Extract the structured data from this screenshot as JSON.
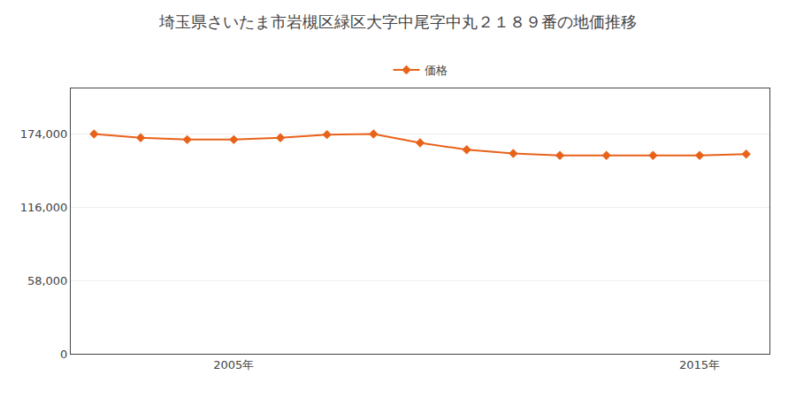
{
  "chart_data": {
    "type": "line",
    "title": "埼玉県さいたま市岩槻区緑区大字中尾字中丸２１８９番の地価推移",
    "x": [
      2002,
      2003,
      2004,
      2005,
      2006,
      2007,
      2008,
      2009,
      2010,
      2011,
      2012,
      2013,
      2014,
      2015,
      2016
    ],
    "series": [
      {
        "name": "価格",
        "color": "#e8621a",
        "marker": "diamond",
        "values": [
          174000,
          171000,
          169500,
          169500,
          171000,
          173500,
          174000,
          167000,
          161500,
          158500,
          157000,
          157000,
          157000,
          157000,
          158000
        ]
      }
    ],
    "xlim": [
      2001.5,
      2016.5
    ],
    "xticks": [
      {
        "value": 2005,
        "label": "2005年"
      },
      {
        "value": 2015,
        "label": "2015年"
      }
    ],
    "ylim": [
      0,
      210000
    ],
    "yticks": [
      0,
      {
        "value": 58000,
        "label": "58,000"
      },
      {
        "value": 116000,
        "label": "116,000"
      },
      {
        "value": 174000,
        "label": "174,000"
      }
    ],
    "grid": true,
    "legend": "top"
  }
}
